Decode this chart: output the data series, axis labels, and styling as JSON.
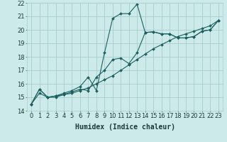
{
  "xlabel": "Humidex (Indice chaleur)",
  "ylabel": "",
  "xlim": [
    -0.5,
    23.5
  ],
  "ylim": [
    14,
    22
  ],
  "yticks": [
    14,
    15,
    16,
    17,
    18,
    19,
    20,
    21,
    22
  ],
  "xticks": [
    0,
    1,
    2,
    3,
    4,
    5,
    6,
    7,
    8,
    9,
    10,
    11,
    12,
    13,
    14,
    15,
    16,
    17,
    18,
    19,
    20,
    21,
    22,
    23
  ],
  "line1_x": [
    0,
    1,
    2,
    3,
    4,
    5,
    6,
    7,
    8,
    9,
    10,
    11,
    12,
    13,
    14,
    15,
    16,
    17,
    18,
    19,
    20,
    21,
    22,
    23
  ],
  "line1_y": [
    14.5,
    15.6,
    15.0,
    15.1,
    15.3,
    15.5,
    15.8,
    16.5,
    15.5,
    18.3,
    20.85,
    21.2,
    21.2,
    21.9,
    19.8,
    19.85,
    19.7,
    19.7,
    19.4,
    19.4,
    19.5,
    19.9,
    20.0,
    20.7
  ],
  "line2_x": [
    0,
    1,
    2,
    3,
    4,
    5,
    6,
    7,
    8,
    9,
    10,
    11,
    12,
    13,
    14,
    15,
    16,
    17,
    18,
    19,
    20,
    21,
    22,
    23
  ],
  "line2_y": [
    14.5,
    15.6,
    15.0,
    15.1,
    15.2,
    15.4,
    15.6,
    15.5,
    16.5,
    17.0,
    17.8,
    17.9,
    17.5,
    18.3,
    19.8,
    19.85,
    19.7,
    19.7,
    19.4,
    19.4,
    19.5,
    19.9,
    20.0,
    20.7
  ],
  "line3_x": [
    0,
    1,
    2,
    3,
    4,
    5,
    6,
    7,
    8,
    9,
    10,
    11,
    12,
    13,
    14,
    15,
    16,
    17,
    18,
    19,
    20,
    21,
    22,
    23
  ],
  "line3_y": [
    14.5,
    15.3,
    15.0,
    15.0,
    15.2,
    15.3,
    15.5,
    15.7,
    16.0,
    16.3,
    16.6,
    17.0,
    17.4,
    17.8,
    18.2,
    18.6,
    18.9,
    19.2,
    19.5,
    19.7,
    19.9,
    20.1,
    20.3,
    20.7
  ],
  "bg_color": "#cceaea",
  "line_color": "#1a6060",
  "grid_color": "#aacccc",
  "marker": "D",
  "marker_size": 2.0,
  "line_width": 0.8,
  "xlabel_fontsize": 7,
  "tick_fontsize": 6
}
